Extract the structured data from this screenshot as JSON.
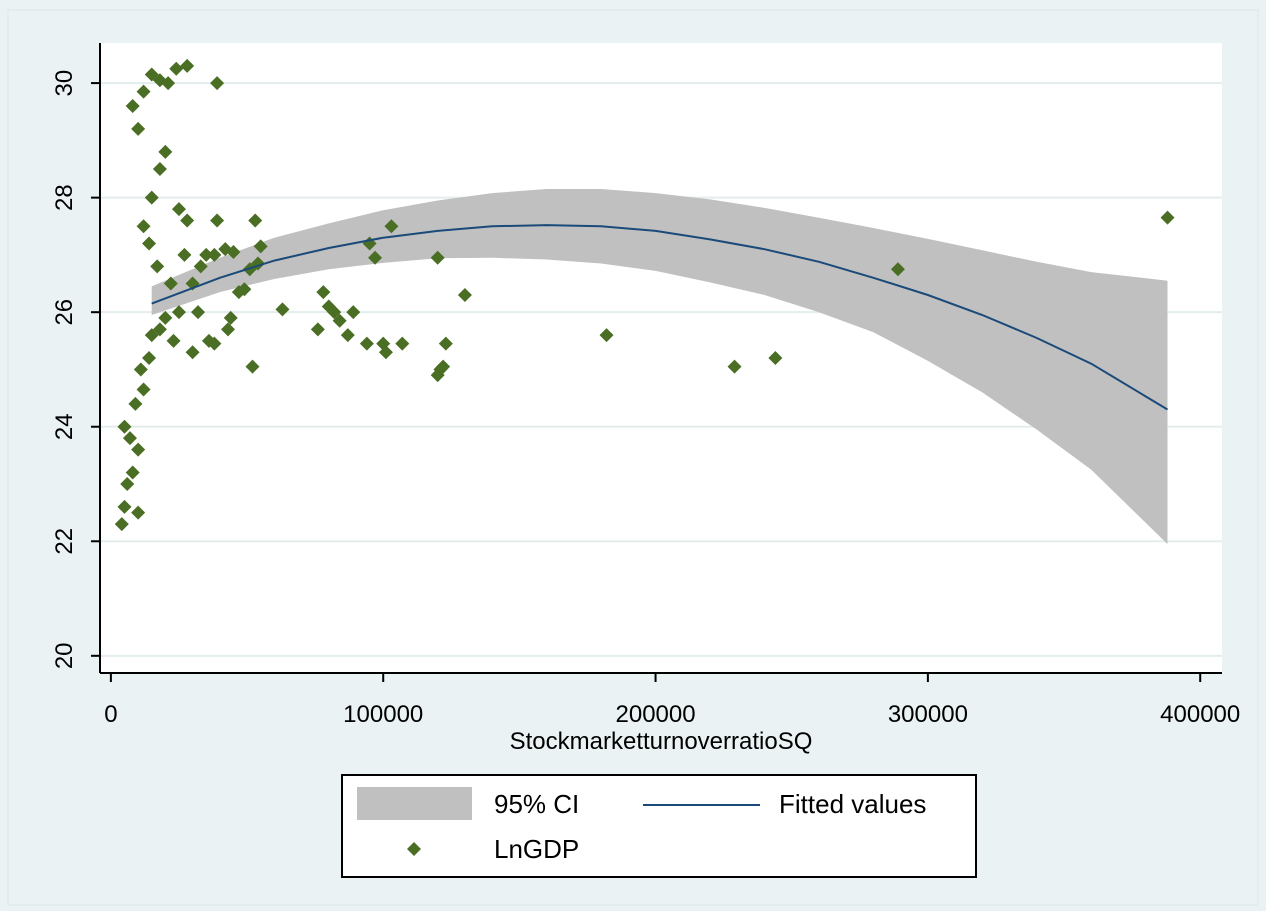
{
  "chart_data": {
    "type": "scatter",
    "title": "",
    "xlabel": "StockmarketturnoverratioSQ",
    "ylabel": "",
    "xlim": [
      -4000,
      408000
    ],
    "ylim": [
      19.7,
      30.7
    ],
    "xticks": [
      0,
      100000,
      200000,
      300000,
      400000
    ],
    "xtick_labels": [
      "0",
      "100000",
      "200000",
      "300000",
      "400000"
    ],
    "yticks": [
      20,
      22,
      24,
      26,
      28,
      30
    ],
    "ytick_labels": [
      "20",
      "22",
      "24",
      "26",
      "28",
      "30"
    ],
    "grid": "horizontal",
    "legend_position": "bottom",
    "colors": {
      "ci_band": "#c0c0c0",
      "fit_line": "#1a4a7a",
      "points": "#4a6e24",
      "plot_bg": "#ffffff",
      "page_bg": "#eaf2f3",
      "grid": "#e3edee"
    },
    "legend": [
      {
        "label": "95% CI",
        "kind": "band"
      },
      {
        "label": "Fitted values",
        "kind": "line"
      },
      {
        "label": "LnGDP",
        "kind": "marker"
      }
    ],
    "ci_band": {
      "x": [
        15000,
        40000,
        60000,
        80000,
        100000,
        120000,
        140000,
        160000,
        180000,
        200000,
        220000,
        240000,
        260000,
        280000,
        300000,
        320000,
        340000,
        360000,
        388000
      ],
      "upper": [
        26.45,
        26.95,
        27.3,
        27.55,
        27.78,
        27.95,
        28.08,
        28.15,
        28.15,
        28.08,
        27.97,
        27.82,
        27.65,
        27.47,
        27.28,
        27.08,
        26.88,
        26.7,
        26.55
      ],
      "lower": [
        25.95,
        26.35,
        26.58,
        26.75,
        26.86,
        26.94,
        26.95,
        26.92,
        26.85,
        26.72,
        26.52,
        26.3,
        26.0,
        25.65,
        25.15,
        24.6,
        23.95,
        23.25,
        21.95
      ]
    },
    "fitted": {
      "name": "Fitted values",
      "x": [
        15000,
        40000,
        60000,
        80000,
        100000,
        120000,
        140000,
        160000,
        180000,
        200000,
        220000,
        240000,
        260000,
        280000,
        300000,
        320000,
        340000,
        360000,
        388000
      ],
      "y": [
        26.15,
        26.6,
        26.9,
        27.12,
        27.3,
        27.42,
        27.5,
        27.52,
        27.5,
        27.42,
        27.27,
        27.1,
        26.88,
        26.6,
        26.3,
        25.95,
        25.55,
        25.1,
        24.3
      ]
    },
    "series": [
      {
        "name": "LnGDP",
        "points": [
          [
            10000,
            22.5
          ],
          [
            4000,
            22.3
          ],
          [
            5000,
            22.6
          ],
          [
            6000,
            23.0
          ],
          [
            8000,
            23.2
          ],
          [
            10000,
            23.6
          ],
          [
            7000,
            23.8
          ],
          [
            5000,
            24.0
          ],
          [
            9000,
            24.4
          ],
          [
            12000,
            24.65
          ],
          [
            11000,
            25.0
          ],
          [
            14000,
            25.2
          ],
          [
            15000,
            25.6
          ],
          [
            18000,
            25.7
          ],
          [
            20000,
            25.9
          ],
          [
            23000,
            25.5
          ],
          [
            25000,
            26.0
          ],
          [
            22000,
            26.5
          ],
          [
            17000,
            26.8
          ],
          [
            14000,
            27.2
          ],
          [
            12000,
            27.5
          ],
          [
            15000,
            28.0
          ],
          [
            18000,
            28.5
          ],
          [
            20000,
            28.8
          ],
          [
            10000,
            29.2
          ],
          [
            8000,
            29.6
          ],
          [
            12000,
            29.85
          ],
          [
            15000,
            30.15
          ],
          [
            18000,
            30.05
          ],
          [
            21000,
            30.0
          ],
          [
            24000,
            30.25
          ],
          [
            28000,
            30.3
          ],
          [
            39000,
            30.0
          ],
          [
            25000,
            27.8
          ],
          [
            28000,
            27.6
          ],
          [
            27000,
            27.0
          ],
          [
            30000,
            26.5
          ],
          [
            30000,
            25.3
          ],
          [
            32000,
            26.0
          ],
          [
            33000,
            26.8
          ],
          [
            35000,
            27.0
          ],
          [
            36000,
            25.5
          ],
          [
            38000,
            25.45
          ],
          [
            38000,
            27.0
          ],
          [
            39000,
            27.6
          ],
          [
            42000,
            27.1
          ],
          [
            43000,
            25.7
          ],
          [
            44000,
            25.9
          ],
          [
            45000,
            27.05
          ],
          [
            47000,
            26.35
          ],
          [
            49000,
            26.4
          ],
          [
            51000,
            26.75
          ],
          [
            52000,
            25.05
          ],
          [
            53000,
            27.6
          ],
          [
            54000,
            26.85
          ],
          [
            55000,
            27.15
          ],
          [
            63000,
            26.05
          ],
          [
            76000,
            25.7
          ],
          [
            78000,
            26.35
          ],
          [
            80000,
            26.1
          ],
          [
            82000,
            26.0
          ],
          [
            84000,
            25.85
          ],
          [
            87000,
            25.6
          ],
          [
            89000,
            26.0
          ],
          [
            94000,
            25.45
          ],
          [
            95000,
            27.2
          ],
          [
            97000,
            26.95
          ],
          [
            100000,
            25.45
          ],
          [
            101000,
            25.3
          ],
          [
            103000,
            27.5
          ],
          [
            107000,
            25.45
          ],
          [
            120000,
            26.95
          ],
          [
            120000,
            24.9
          ],
          [
            121000,
            25.0
          ],
          [
            122000,
            25.05
          ],
          [
            123000,
            25.45
          ],
          [
            130000,
            26.3
          ],
          [
            182000,
            25.6
          ],
          [
            229000,
            25.05
          ],
          [
            244000,
            25.2
          ],
          [
            289000,
            26.75
          ],
          [
            388000,
            27.65
          ]
        ]
      }
    ]
  }
}
